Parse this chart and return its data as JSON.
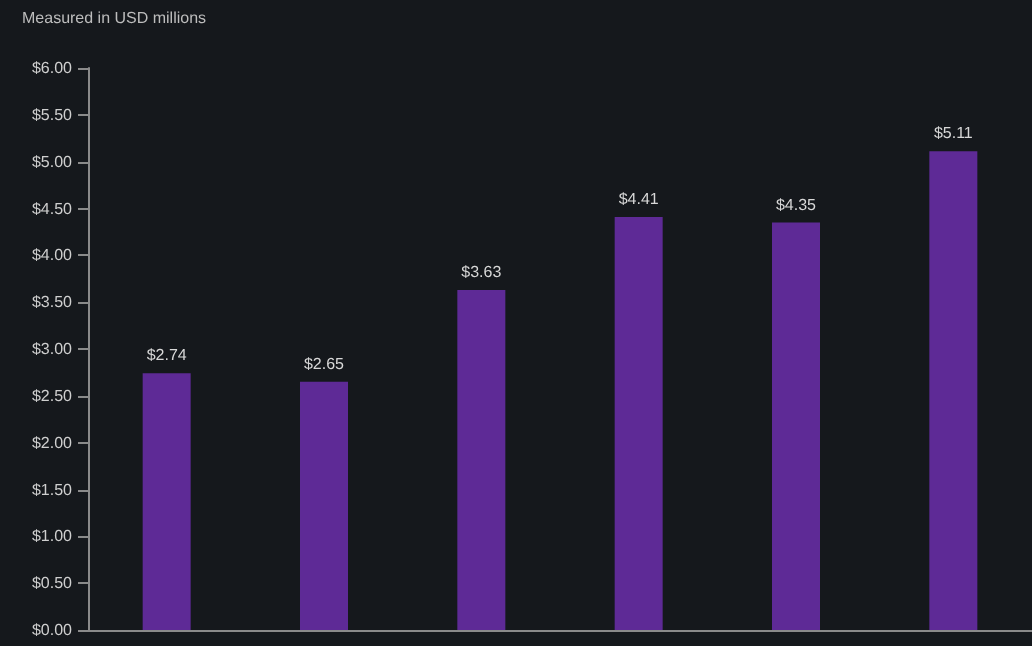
{
  "chart_data": {
    "type": "bar",
    "subtitle": "Measured in USD millions",
    "categories": [
      null,
      null,
      null,
      null,
      null,
      null
    ],
    "values": [
      2.74,
      2.65,
      3.63,
      4.41,
      4.35,
      5.11
    ],
    "color": "#5e2a96",
    "value_labels": [
      "$2.74",
      "$2.65",
      "$3.63",
      "$4.41",
      "$4.35",
      "$5.11"
    ],
    "ylim": [
      0,
      6
    ],
    "yticks": [
      {
        "value": 0,
        "label": "$0.00"
      },
      {
        "value": 0.5,
        "label": "$0.50"
      },
      {
        "value": 1,
        "label": "$1.00"
      },
      {
        "value": 1.5,
        "label": "$1.50"
      },
      {
        "value": 2,
        "label": "$2.00"
      },
      {
        "value": 2.5,
        "label": "$2.50"
      },
      {
        "value": 3,
        "label": "$3.00"
      },
      {
        "value": 3.5,
        "label": "$3.50"
      },
      {
        "value": 4,
        "label": "$4.00"
      },
      {
        "value": 4.5,
        "label": "$4.50"
      },
      {
        "value": 5,
        "label": "$5.00"
      },
      {
        "value": 5.5,
        "label": "$5.50"
      },
      {
        "value": 6,
        "label": "$6.00"
      }
    ],
    "grid": false
  }
}
